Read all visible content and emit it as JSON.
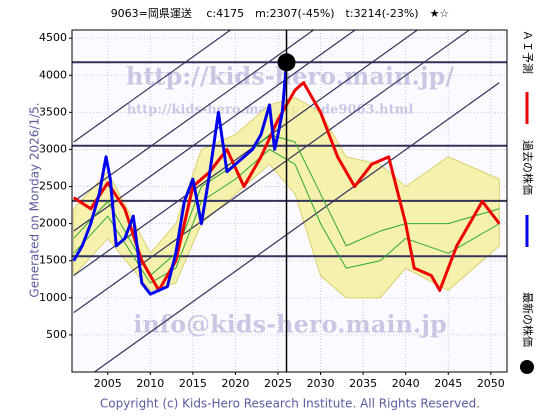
{
  "chart_data": {
    "type": "line",
    "title": "9063=岡県運送　 c:4175　m:2307(-45%)　t:3214(-23%)　★☆",
    "side_label": "Generated on Monday 2026/1/5.",
    "footer": "Copyright (c) Kids-Hero Research Institute. All Rights Reserved.",
    "watermarks": [
      "http://kids-hero.main.jp/",
      "http://kids-hero.main.jp/code9063.html",
      "info@kids-hero.main.jp"
    ],
    "xlim": [
      2000.8,
      2051.9
    ],
    "ylim": [
      0,
      4610
    ],
    "xticks": [
      2005,
      2010,
      2015,
      2020,
      2025,
      2030,
      2035,
      2040,
      2045,
      2050
    ],
    "yticks": [
      500,
      1000,
      1500,
      2000,
      2500,
      3000,
      3500,
      4000,
      4500
    ],
    "grid": true,
    "band": {
      "color": "#f4f0a0",
      "x": [
        2001,
        2005,
        2010,
        2013,
        2016,
        2020,
        2024,
        2027,
        2030,
        2033,
        2037,
        2040,
        2045,
        2051
      ],
      "upper": [
        2200,
        2700,
        1600,
        2000,
        3000,
        3200,
        3600,
        3700,
        3500,
        2900,
        2800,
        2500,
        2900,
        2600
      ],
      "lower": [
        1300,
        1800,
        1100,
        1200,
        2000,
        2400,
        2800,
        2400,
        1300,
        1000,
        1000,
        1400,
        1100,
        1700
      ]
    },
    "series": [
      {
        "color": "#2ea82e",
        "x": [
          2001,
          2005,
          2010,
          2013,
          2016,
          2020,
          2024,
          2027,
          2030,
          2033,
          2037,
          2040,
          2045,
          2051
        ],
        "values": [
          1800,
          2300,
          1300,
          1600,
          2500,
          2800,
          3200,
          3100,
          2400,
          1700,
          1900,
          2000,
          2000,
          2200
        ]
      },
      {
        "color": "#2ea82e",
        "x": [
          2001,
          2005,
          2010,
          2013,
          2016,
          2020,
          2024,
          2027,
          2030,
          2033,
          2037,
          2040,
          2045,
          2051
        ],
        "values": [
          1600,
          2100,
          1200,
          1400,
          2300,
          2600,
          3000,
          2800,
          2000,
          1400,
          1500,
          1800,
          1600,
          2000
        ]
      },
      {
        "name": "ＡＩ予測",
        "color": "#ee0000",
        "x": [
          2001,
          2003,
          2005,
          2007,
          2009,
          2011,
          2013,
          2015,
          2017,
          2019,
          2021,
          2023,
          2025,
          2027,
          2028,
          2030,
          2032,
          2034,
          2036,
          2038,
          2040,
          2041,
          2043,
          2044,
          2046,
          2048,
          2049,
          2051
        ],
        "values": [
          2350,
          2200,
          2550,
          2200,
          1500,
          1100,
          1500,
          2500,
          2700,
          3000,
          2500,
          2900,
          3400,
          3800,
          3900,
          3500,
          2900,
          2500,
          2800,
          2900,
          2000,
          1400,
          1300,
          1100,
          1700,
          2100,
          2300,
          2000
        ]
      },
      {
        "name": "過去の株価",
        "color": "#0000ee",
        "x": [
          2001,
          2002,
          2003,
          2004,
          2004.8,
          2005.3,
          2006,
          2007,
          2008,
          2009,
          2010,
          2011,
          2012,
          2013,
          2014,
          2015,
          2016,
          2017,
          2018,
          2019,
          2020,
          2021,
          2022,
          2023,
          2024,
          2024.6,
          2025,
          2025.5,
          2026
        ],
        "values": [
          1500,
          1700,
          2000,
          2400,
          2900,
          2600,
          1700,
          1800,
          2100,
          1200,
          1050,
          1100,
          1150,
          1600,
          2300,
          2600,
          2000,
          2700,
          3500,
          2700,
          2800,
          2900,
          3000,
          3200,
          3600,
          3000,
          3200,
          3500,
          4175
        ]
      }
    ],
    "hlines": [
      4175,
      3050,
      2307,
      1560
    ],
    "trend_lines": [
      {
        "x": [
          2001,
          2051
        ],
        "values": [
          800,
          4900
        ]
      },
      {
        "x": [
          2001,
          2051
        ],
        "values": [
          1300,
          5400
        ]
      },
      {
        "x": [
          2001,
          2051
        ],
        "values": [
          1900,
          6000
        ]
      },
      {
        "x": [
          2001,
          2051
        ],
        "values": [
          2300,
          6400
        ]
      },
      {
        "x": [
          2001,
          2051
        ],
        "values": [
          3100,
          7200
        ]
      },
      {
        "x": [
          2001,
          2051
        ],
        "values": [
          -200,
          3900
        ]
      }
    ],
    "vline": 2026,
    "latest": {
      "name": "最新の株価",
      "x": 2026,
      "value": 4175,
      "color": "#000000"
    }
  }
}
